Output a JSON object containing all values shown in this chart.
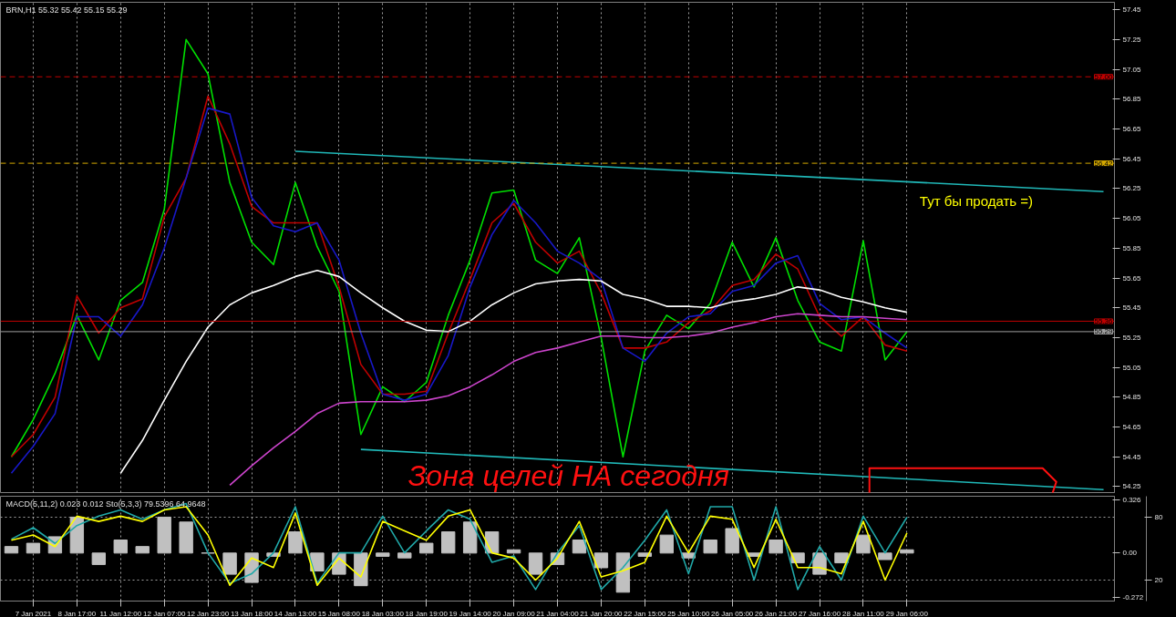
{
  "chart_data": [
    {
      "type": "line",
      "title": "BRN,H1 55.32 55.42 55.15 55.29",
      "categories": [
        null,
        null,
        null,
        null,
        null,
        null,
        null,
        null,
        null,
        null,
        null,
        null,
        null,
        null,
        null,
        null,
        null,
        null,
        null,
        null,
        null,
        null,
        null,
        null,
        null,
        null,
        null,
        null,
        null,
        null,
        null,
        null,
        null,
        null,
        null,
        null,
        null,
        null,
        null,
        null,
        null,
        null,
        null,
        null,
        null,
        null,
        null,
        null,
        null,
        null,
        null
      ],
      "ylim": [
        54.21,
        57.5
      ],
      "yticks": [
        57.45,
        57.25,
        57.05,
        56.85,
        56.65,
        56.45,
        56.25,
        56.05,
        55.85,
        55.65,
        55.45,
        55.25,
        55.05,
        54.85,
        54.65,
        54.45,
        54.25
      ],
      "tick_labels": "y",
      "grid": "x",
      "series": [
        {
          "color": "#00e000",
          "values": [
            54.45,
            54.7,
            55.01,
            55.4,
            55.1,
            55.5,
            55.62,
            56.11,
            57.25,
            57.02,
            56.29,
            55.89,
            55.74,
            56.29,
            55.86,
            55.56,
            54.6,
            54.92,
            54.82,
            54.95,
            55.4,
            55.77,
            56.22,
            56.24,
            55.77,
            55.68,
            55.92,
            55.25,
            54.45,
            55.16,
            55.4,
            55.31,
            55.48,
            55.89,
            55.59,
            55.92,
            55.5,
            55.22,
            55.16,
            55.9,
            55.1,
            55.29,
            null,
            null,
            null,
            null,
            null,
            null,
            null,
            null,
            null
          ]
        },
        {
          "color": "#c00000",
          "values": [
            54.45,
            54.6,
            54.85,
            55.53,
            55.28,
            55.45,
            55.51,
            56.06,
            56.32,
            56.87,
            56.55,
            56.13,
            56.02,
            56.02,
            56.02,
            55.59,
            55.07,
            54.87,
            54.87,
            54.89,
            55.28,
            55.64,
            56.02,
            56.15,
            55.89,
            55.75,
            55.83,
            55.55,
            55.18,
            55.18,
            55.22,
            55.35,
            55.43,
            55.6,
            55.64,
            55.81,
            55.71,
            55.39,
            55.26,
            55.39,
            55.2,
            55.16,
            null,
            null,
            null,
            null,
            null,
            null,
            null,
            null,
            null
          ]
        },
        {
          "color": "#1818c8",
          "values": [
            54.34,
            54.52,
            54.74,
            55.39,
            55.39,
            55.26,
            55.47,
            55.85,
            56.32,
            56.79,
            56.75,
            56.19,
            56.0,
            55.96,
            56.02,
            55.77,
            55.28,
            54.87,
            54.83,
            54.87,
            55.13,
            55.59,
            55.94,
            56.17,
            56.02,
            55.83,
            55.75,
            55.64,
            55.18,
            55.09,
            55.28,
            55.39,
            55.41,
            55.56,
            55.6,
            55.75,
            55.8,
            55.48,
            55.37,
            55.39,
            55.28,
            55.18,
            null,
            null,
            null,
            null,
            null,
            null,
            null,
            null,
            null
          ]
        },
        {
          "color": "#ffffff",
          "values": [
            null,
            null,
            null,
            null,
            null,
            54.34,
            54.56,
            54.83,
            55.09,
            55.32,
            55.47,
            55.55,
            55.6,
            55.66,
            55.7,
            55.66,
            55.55,
            55.45,
            55.36,
            55.3,
            55.29,
            55.36,
            55.47,
            55.55,
            55.61,
            55.63,
            55.64,
            55.63,
            55.54,
            55.51,
            55.46,
            55.46,
            55.45,
            55.49,
            55.51,
            55.54,
            55.59,
            55.57,
            55.52,
            55.49,
            55.45,
            55.42,
            null,
            null,
            null,
            null,
            null,
            null,
            null,
            null,
            null
          ]
        },
        {
          "color": "#cc44cc",
          "values": [
            null,
            null,
            null,
            null,
            null,
            null,
            null,
            null,
            null,
            null,
            54.26,
            54.39,
            54.51,
            54.62,
            54.74,
            54.81,
            54.82,
            54.82,
            54.82,
            54.83,
            54.86,
            54.92,
            55.0,
            55.09,
            55.15,
            55.18,
            55.22,
            55.26,
            55.26,
            55.25,
            55.25,
            55.26,
            55.28,
            55.32,
            55.35,
            55.39,
            55.41,
            55.4,
            55.39,
            55.39,
            55.38,
            55.37,
            null,
            null,
            null,
            null,
            null,
            null,
            null,
            null,
            null
          ]
        },
        {
          "color": "#20b8b8",
          "values": [
            null,
            null,
            null,
            null,
            null,
            null,
            null,
            null,
            null,
            null,
            null,
            null,
            null,
            56.5,
            null,
            null,
            null,
            null,
            null,
            null,
            null,
            null,
            null,
            null,
            null,
            null,
            null,
            null,
            null,
            null,
            null,
            null,
            null,
            null,
            null,
            null,
            null,
            null,
            null,
            null,
            null,
            null,
            null,
            null,
            null,
            null,
            null,
            null,
            null,
            null,
            56.23
          ]
        },
        {
          "color": "#20b8b8",
          "values": [
            null,
            null,
            null,
            null,
            null,
            null,
            null,
            null,
            null,
            null,
            null,
            null,
            null,
            null,
            null,
            null,
            54.5,
            null,
            null,
            null,
            null,
            null,
            null,
            null,
            null,
            null,
            null,
            null,
            null,
            null,
            null,
            null,
            null,
            null,
            null,
            null,
            null,
            null,
            null,
            null,
            null,
            null,
            null,
            null,
            null,
            null,
            null,
            null,
            null,
            null,
            54.23
          ]
        }
      ],
      "ref_lines": [
        {
          "axis": "y",
          "value": 57.0,
          "label": "57.00",
          "color": "#c00000",
          "line_style": "dashed"
        },
        {
          "axis": "y",
          "value": 56.42,
          "label": "56.42",
          "color": "#d4a800",
          "line_style": "dashed"
        },
        {
          "axis": "y",
          "value": 55.36,
          "label": "55.36",
          "color": "#c00000",
          "line_style": "solid"
        },
        {
          "axis": "y",
          "value": 55.29,
          "label": "55.29",
          "color": "#a0a0a0",
          "line_style": "solid"
        }
      ],
      "annotations": [
        "Тут бы продать =)",
        "Зона целей НА сегодня"
      ]
    },
    {
      "type": "bar",
      "title": "MACD(5,11,2) 0.023 0.012  Sto(5,3,3) 79.5396 64.9648",
      "categories": [
        null,
        "7 Jan 2021",
        null,
        "8 Jan 17:00",
        null,
        "11 Jan 12:00",
        null,
        "12 Jan 07:00",
        null,
        "12 Jan 23:00",
        null,
        "13 Jan 18:00",
        null,
        "14 Jan 13:00",
        null,
        "15 Jan 08:00",
        null,
        "18 Jan 03:00",
        null,
        "18 Jan 19:00",
        null,
        "19 Jan 14:00",
        null,
        "20 Jan 09:00",
        null,
        "21 Jan 04:00",
        null,
        "21 Jan 20:00",
        null,
        "22 Jan 15:00",
        null,
        "25 Jan 10:00",
        null,
        "26 Jan 05:00",
        null,
        "26 Jan 21:00",
        null,
        "27 Jan 16:00",
        null,
        "28 Jan 11:00",
        null,
        "29 Jan 06:00",
        null,
        null,
        null,
        null,
        null,
        null,
        null,
        null,
        null
      ],
      "ylim": [
        -0.294,
        0.348
      ],
      "y2lim": [
        0,
        100
      ],
      "yticks": [
        0.326,
        {
          "value": 0,
          "label": "0.00"
        },
        -0.272
      ],
      "y2ticks": [
        80,
        20
      ],
      "grid": true,
      "series": [
        {
          "color": "#c0c0c0",
          "values": [
            0.04,
            0.06,
            0.1,
            0.22,
            -0.07,
            0.08,
            0.04,
            0.22,
            0.19,
            0.0,
            -0.13,
            -0.18,
            -0.02,
            0.13,
            -0.11,
            -0.13,
            -0.2,
            -0.02,
            -0.03,
            0.06,
            0.13,
            0.19,
            0.13,
            0.02,
            -0.13,
            -0.07,
            0.08,
            -0.09,
            -0.24,
            -0.02,
            0.11,
            -0.03,
            0.08,
            0.15,
            -0.02,
            0.08,
            -0.06,
            -0.13,
            -0.06,
            0.11,
            -0.04,
            0.02,
            null,
            null,
            null,
            null,
            null,
            null,
            null,
            null,
            null
          ]
        },
        {
          "type": "line",
          "axis": "y2",
          "color": "#20a8a8",
          "values": [
            59,
            70,
            55,
            72,
            81,
            87,
            78,
            87,
            93,
            46,
            17,
            26,
            46,
            90,
            17,
            46,
            46,
            81,
            46,
            67,
            87,
            78,
            37,
            43,
            11,
            46,
            72,
            11,
            32,
            58,
            87,
            26,
            90,
            90,
            20,
            90,
            11,
            52,
            20,
            81,
            46,
            80,
            null,
            null,
            null,
            null,
            null,
            null,
            null,
            null,
            null
          ]
        },
        {
          "type": "line",
          "axis": "y2",
          "color": "#ffff00",
          "values": [
            58,
            63,
            52,
            81,
            76,
            81,
            76,
            87,
            90,
            63,
            15,
            41,
            32,
            84,
            15,
            41,
            23,
            76,
            67,
            58,
            81,
            87,
            46,
            41,
            20,
            41,
            76,
            23,
            29,
            37,
            81,
            46,
            81,
            78,
            32,
            78,
            32,
            32,
            26,
            76,
            20,
            65,
            null,
            null,
            null,
            null,
            null,
            null,
            null,
            null,
            null
          ]
        }
      ]
    }
  ]
}
